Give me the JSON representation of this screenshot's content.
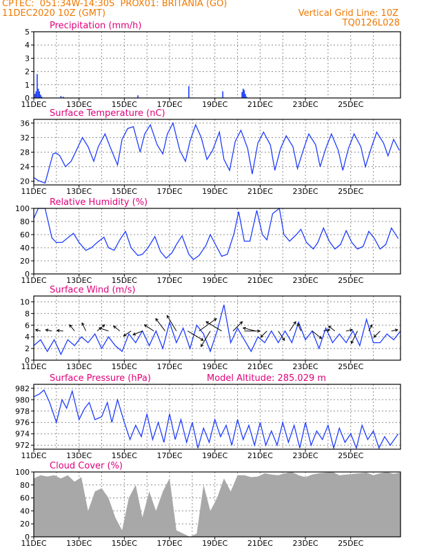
{
  "header": {
    "line1_left": "CPTEC:  051:34W-14:30S  PROX01: BRITANIA (GO)",
    "line2_left": "11DEC2020 10Z (GMT)",
    "line2_right": "Vertical Grid Line: 10Z",
    "line3_right": "TQ0126L028",
    "header_color": "#f07800",
    "title_color": "#e0007a",
    "series_color": "#1e3cff",
    "cloud_color": "#a8a8a8"
  },
  "chart_data": [
    {
      "type": "bar",
      "title": "Precipitation (mm/h)",
      "ylim": [
        0,
        5
      ],
      "yticks": [
        "0",
        "1",
        "2",
        "3",
        "4",
        "5"
      ],
      "xticks": [
        "11DEC",
        "13DEC",
        "15DEC",
        "17DEC",
        "19DEC",
        "21DEC",
        "23DEC",
        "25DEC"
      ],
      "grid": true,
      "x": [
        0.05,
        0.1,
        0.15,
        0.2,
        0.25,
        0.3,
        0.35,
        1.2,
        1.3,
        4.6,
        6.85,
        8.35,
        9.2,
        9.25,
        9.3,
        9.35,
        9.4
      ],
      "values": [
        0.3,
        0.5,
        1.8,
        0.7,
        0.5,
        0.25,
        0.1,
        0.15,
        0.1,
        0.2,
        0.9,
        0.5,
        0.45,
        0.7,
        0.6,
        0.3,
        0.1
      ]
    },
    {
      "type": "line",
      "title": "Surface Temperature (nC)",
      "ylim": [
        19,
        37
      ],
      "yticks": [
        "20",
        "24",
        "28",
        "32",
        "36"
      ],
      "xticks": [
        "11DEC",
        "13DEC",
        "15DEC",
        "17DEC",
        "19DEC",
        "21DEC",
        "23DEC",
        "25DEC"
      ],
      "grid": true,
      "x": [
        0,
        0.2,
        0.5,
        0.85,
        1.0,
        1.15,
        1.4,
        1.65,
        2.15,
        2.4,
        2.65,
        2.85,
        3.15,
        3.4,
        3.7,
        3.9,
        4.15,
        4.4,
        4.7,
        4.9,
        5.15,
        5.45,
        5.7,
        5.9,
        6.15,
        6.45,
        6.7,
        6.9,
        7.15,
        7.4,
        7.65,
        7.9,
        8.2,
        8.4,
        8.65,
        8.9,
        9.15,
        9.45,
        9.65,
        9.9,
        10.15,
        10.45,
        10.65,
        10.9,
        11.15,
        11.45,
        11.65,
        11.9,
        12.15,
        12.45,
        12.65,
        12.9,
        13.15,
        13.45,
        13.65,
        13.9,
        14.15,
        14.45,
        14.65,
        14.9,
        15.15,
        15.45,
        15.65,
        15.9,
        16.15
      ],
      "series": [
        {
          "values": [
            21.0,
            20.2,
            19.5,
            27.5,
            27.8,
            27.0,
            24.0,
            25.5,
            32.0,
            29.5,
            25.5,
            29.5,
            33.0,
            29.0,
            24.5,
            31.5,
            34.5,
            35.0,
            28.0,
            33.0,
            35.5,
            30.0,
            27.5,
            33.0,
            36.0,
            28.5,
            25.5,
            31.0,
            35.5,
            32.0,
            26.0,
            28.5,
            33.5,
            26.0,
            23.0,
            31.0,
            34.0,
            29.0,
            22.0,
            30.5,
            33.5,
            30.0,
            23.0,
            29.0,
            32.5,
            29.5,
            23.5,
            28.5,
            33.0,
            30.0,
            24.0,
            29.0,
            33.0,
            28.5,
            23.0,
            29.0,
            33.0,
            29.5,
            24.0,
            29.0,
            33.5,
            30.5,
            27.0,
            31.5,
            28.5
          ]
        }
      ]
    },
    {
      "type": "line",
      "title": "Relative Humidity (%)",
      "ylim": [
        0,
        100
      ],
      "yticks": [
        "0",
        "20",
        "40",
        "60",
        "80",
        "100"
      ],
      "xticks": [
        "11DEC",
        "13DEC",
        "15DEC",
        "17DEC",
        "19DEC",
        "21DEC",
        "23DEC",
        "25DEC"
      ],
      "grid": true,
      "x": [
        0,
        0.2,
        0.5,
        0.8,
        1.0,
        1.25,
        1.5,
        1.75,
        2.0,
        2.3,
        2.55,
        2.8,
        3.1,
        3.3,
        3.55,
        3.8,
        4.05,
        4.3,
        4.6,
        4.8,
        5.05,
        5.35,
        5.6,
        5.85,
        6.1,
        6.3,
        6.55,
        6.85,
        7.05,
        7.3,
        7.6,
        7.8,
        8.1,
        8.3,
        8.55,
        8.85,
        9.05,
        9.3,
        9.55,
        9.85,
        10.1,
        10.3,
        10.55,
        10.85,
        11.05,
        11.3,
        11.6,
        11.8,
        12.05,
        12.35,
        12.55,
        12.8,
        13.05,
        13.3,
        13.55,
        13.8,
        14.05,
        14.3,
        14.55,
        14.8,
        15.05,
        15.3,
        15.55,
        15.8,
        16.1
      ],
      "series": [
        {
          "values": [
            85,
            100,
            100,
            55,
            48,
            48,
            55,
            62,
            48,
            36,
            40,
            48,
            56,
            40,
            36,
            52,
            65,
            40,
            28,
            30,
            40,
            57,
            34,
            24,
            32,
            45,
            58,
            30,
            22,
            28,
            43,
            60,
            40,
            27,
            30,
            62,
            95,
            50,
            50,
            97,
            60,
            52,
            92,
            100,
            60,
            50,
            60,
            68,
            48,
            38,
            48,
            70,
            50,
            38,
            45,
            66,
            48,
            38,
            42,
            65,
            54,
            38,
            45,
            70,
            54
          ]
        }
      ]
    },
    {
      "type": "line",
      "title": "Surface Wind (m/s)",
      "ylim": [
        0,
        11
      ],
      "yticks": [
        "0",
        "2",
        "4",
        "6",
        "8",
        "10"
      ],
      "xticks": [
        "11DEC",
        "13DEC",
        "15DEC",
        "17DEC",
        "19DEC",
        "21DEC",
        "23DEC",
        "25DEC"
      ],
      "grid": true,
      "x": [
        0,
        0.3,
        0.6,
        0.9,
        1.2,
        1.5,
        1.8,
        2.1,
        2.4,
        2.7,
        3.0,
        3.3,
        3.6,
        3.9,
        4.2,
        4.5,
        4.8,
        5.1,
        5.4,
        5.7,
        6.0,
        6.3,
        6.6,
        6.9,
        7.2,
        7.5,
        7.8,
        8.1,
        8.4,
        8.7,
        9.0,
        9.3,
        9.6,
        9.9,
        10.2,
        10.5,
        10.8,
        11.1,
        11.4,
        11.7,
        12.0,
        12.3,
        12.6,
        12.9,
        13.2,
        13.5,
        13.8,
        14.1,
        14.4,
        14.7,
        15.0,
        15.3,
        15.6,
        15.9,
        16.2
      ],
      "series": [
        {
          "values": [
            2.5,
            3.5,
            1.5,
            3.5,
            1.0,
            3.5,
            2.5,
            4.0,
            3.0,
            4.5,
            2.0,
            4.0,
            2.5,
            1.5,
            4.5,
            3.0,
            5.0,
            2.5,
            5.0,
            2.0,
            6.5,
            3.0,
            5.5,
            2.0,
            6.0,
            4.5,
            1.5,
            5.0,
            9.5,
            3.0,
            5.5,
            3.5,
            1.5,
            4.0,
            3.0,
            5.0,
            3.0,
            5.0,
            3.0,
            6.5,
            3.5,
            5.0,
            2.0,
            5.5,
            3.0,
            4.5,
            3.0,
            5.0,
            2.5,
            7.0,
            3.0,
            3.0,
            4.5,
            3.5,
            5.0
          ]
        }
      ],
      "arrows": {
        "x": [
          0.3,
          0.8,
          1.3,
          1.8,
          2.3,
          2.8,
          3.3,
          3.8,
          4.3,
          4.8,
          5.3,
          5.8,
          6.3,
          6.8,
          7.3,
          7.8,
          8.3,
          8.8,
          9.3,
          9.8,
          10.3,
          10.8,
          11.3,
          11.8,
          12.3,
          12.8,
          13.3,
          13.8,
          14.3,
          14.8,
          15.3,
          15.8
        ],
        "u": [
          -0.8,
          -1.0,
          -1.0,
          -0.8,
          -0.6,
          1.2,
          -1.5,
          -1.0,
          -1.2,
          -1.5,
          -1.5,
          -1.5,
          -1.5,
          2.5,
          2.8,
          -1.5,
          -2.5,
          1.5,
          2.5,
          -2.0,
          -1.0,
          1.0,
          1.0,
          -0.5,
          1.5,
          1.0,
          -1.0,
          1.0,
          -1.0,
          0.5,
          -1.0,
          1.0
        ],
        "v": [
          0.2,
          0.2,
          0.1,
          1.0,
          1.3,
          1.0,
          0.5,
          0.8,
          -0.8,
          -0.6,
          1.0,
          2.0,
          2.5,
          -1.5,
          2.0,
          -2.5,
          1.5,
          1.5,
          0.0,
          0.5,
          -1.0,
          -1.5,
          1.5,
          1.2,
          -1.2,
          0.2,
          0.8,
          0.2,
          -2.0,
          1.0,
          -1.0,
          0.2
        ]
      }
    },
    {
      "type": "line",
      "title": "Surface Pressure (hPa)",
      "annotation": "Model Altitude: 285.029 m",
      "ylim": [
        971.3,
        982.7
      ],
      "yticks": [
        "972",
        "974",
        "976",
        "978",
        "980",
        "982"
      ],
      "xticks": [
        "11DEC",
        "13DEC",
        "15DEC",
        "17DEC",
        "19DEC",
        "21DEC",
        "23DEC",
        "25DEC"
      ],
      "grid": true,
      "x": [
        0,
        0.25,
        0.45,
        0.7,
        1.0,
        1.25,
        1.45,
        1.7,
        2.0,
        2.25,
        2.45,
        2.7,
        3.0,
        3.25,
        3.45,
        3.7,
        4.0,
        4.25,
        4.5,
        4.75,
        5.0,
        5.25,
        5.5,
        5.75,
        6.0,
        6.25,
        6.5,
        6.75,
        7.0,
        7.25,
        7.5,
        7.75,
        8.0,
        8.25,
        8.5,
        8.75,
        9.0,
        9.25,
        9.5,
        9.75,
        10.0,
        10.25,
        10.5,
        10.75,
        11.0,
        11.25,
        11.5,
        11.75,
        12.0,
        12.25,
        12.5,
        12.75,
        13.0,
        13.25,
        13.5,
        13.75,
        14.0,
        14.25,
        14.5,
        14.75,
        15.0,
        15.25,
        15.5,
        15.75,
        16.1
      ],
      "series": [
        {
          "values": [
            980.5,
            981.0,
            981.7,
            979.5,
            976.0,
            980.0,
            978.5,
            981.5,
            976.5,
            978.5,
            979.5,
            976.5,
            977.0,
            979.5,
            976.0,
            980.0,
            976.0,
            973.0,
            975.5,
            973.5,
            977.5,
            973.0,
            976.0,
            972.5,
            977.5,
            973.0,
            976.5,
            972.5,
            976.0,
            971.5,
            975.0,
            972.5,
            976.5,
            973.5,
            975.5,
            972.0,
            976.5,
            973.0,
            975.5,
            972.0,
            976.0,
            972.0,
            974.5,
            972.0,
            976.0,
            972.5,
            975.5,
            971.5,
            976.0,
            972.0,
            974.5,
            973.0,
            975.5,
            971.5,
            975.0,
            972.5,
            974.0,
            971.5,
            975.5,
            973.0,
            974.5,
            971.5,
            973.5,
            972.0,
            974.0
          ]
        }
      ]
    },
    {
      "type": "area",
      "title": "Cloud Cover (%)",
      "ylim": [
        0,
        100
      ],
      "yticks": [
        "0",
        "20",
        "40",
        "60",
        "80",
        "100"
      ],
      "xticks": [
        "11DEC",
        "13DEC",
        "15DEC",
        "17DEC",
        "19DEC",
        "21DEC",
        "23DEC",
        "25DEC"
      ],
      "grid": true,
      "x": [
        0,
        0.3,
        0.6,
        0.9,
        1.2,
        1.5,
        1.8,
        2.1,
        2.4,
        2.7,
        3.0,
        3.3,
        3.6,
        3.9,
        4.2,
        4.5,
        4.8,
        5.1,
        5.4,
        5.7,
        6.0,
        6.3,
        6.6,
        6.9,
        7.2,
        7.5,
        7.8,
        8.1,
        8.4,
        8.7,
        9.0,
        9.3,
        9.6,
        9.9,
        10.2,
        10.5,
        10.8,
        11.1,
        11.4,
        11.7,
        12.0,
        12.3,
        12.6,
        12.9,
        13.2,
        13.5,
        13.8,
        14.1,
        14.4,
        14.7,
        15.0,
        15.3,
        15.6,
        15.9,
        16.2
      ],
      "series": [
        {
          "values": [
            90,
            95,
            93,
            95,
            90,
            95,
            85,
            92,
            40,
            70,
            75,
            60,
            30,
            10,
            60,
            80,
            30,
            70,
            40,
            70,
            90,
            10,
            5,
            0,
            5,
            80,
            40,
            60,
            90,
            70,
            95,
            95,
            92,
            93,
            98,
            96,
            95,
            98,
            100,
            95,
            92,
            96,
            98,
            99,
            100,
            95,
            96,
            97,
            98,
            99,
            95,
            98,
            100,
            97,
            99
          ]
        }
      ]
    }
  ]
}
